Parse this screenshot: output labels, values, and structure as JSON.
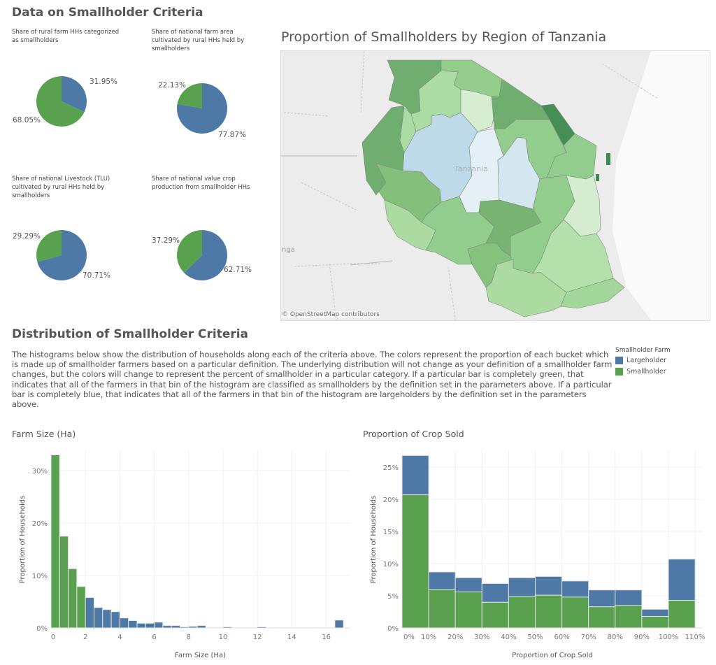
{
  "colors": {
    "largeholder": "#4e79a7",
    "smallholder": "#59a14f"
  },
  "criteria": {
    "title": "Data on Smallholder Criteria",
    "pies": [
      {
        "title": "Share of rural farm HHs categorized as smallholders",
        "largeholder": 31.95,
        "smallholder": 68.05,
        "largeholder_label": "31.95%",
        "smallholder_label": "68.05%"
      },
      {
        "title": "Share of national farm area cultivated by rural HHs held by smallholders",
        "largeholder": 77.87,
        "smallholder": 22.13,
        "largeholder_label": "77.87%",
        "smallholder_label": "22.13%"
      },
      {
        "title": "Share of national Livestock (TLU) cultivated by rural HHs held by smallholders",
        "largeholder": 70.71,
        "smallholder": 29.29,
        "largeholder_label": "70.71%",
        "smallholder_label": "29.29%"
      },
      {
        "title": "Share of national value crop production from smallholder HHs",
        "largeholder": 62.71,
        "smallholder": 37.29,
        "largeholder_label": "62.71%",
        "smallholder_label": "37.29%"
      }
    ]
  },
  "map": {
    "title": "Proportion of Smallholders by Region of Tanzania",
    "country_label": "Tanzania",
    "edge_label": "nga",
    "credit": "© OpenStreetMap contributors"
  },
  "distribution": {
    "title": "Distribution of Smallholder Criteria",
    "description": "The histograms below show the distribution of households along each of the criteria above. The colors represent the proportion of each bucket which is made up of smallholder farmers based on a particular definition. The underlying distribution will not change as your definition of a smallholder farm changes, but the colors will change to represent the percent of smallholder in a particular category. If a particular bar is completely green, that indicates that all of the farmers in that bin of the histogram are classified as smallholders by the definition set in the parameters above. If a particular bar is completely blue, that indicates that all of the farmers in that bin of the histogram are largeholders by the definition set in the parameters above."
  },
  "legend": {
    "title": "Smallholder Farm",
    "items": [
      {
        "label": "Largeholder",
        "key": "largeholder"
      },
      {
        "label": "Smallholder",
        "key": "smallholder"
      }
    ]
  },
  "chart_data": [
    {
      "type": "bar",
      "title": "Farm Size (Ha)",
      "xlabel": "Farm Size (Ha)",
      "ylabel": "Proportion of Households",
      "bin_width": 0.5,
      "xlim": [
        0,
        17
      ],
      "ylim": [
        0,
        33
      ],
      "grid": true,
      "xticks": [
        0,
        2,
        4,
        6,
        8,
        10,
        12,
        14,
        16
      ],
      "xtick_labels": [
        "0",
        "2",
        "4",
        "6",
        "8",
        "10",
        "12",
        "14",
        "16"
      ],
      "yticks": [
        0,
        10,
        20,
        30
      ],
      "ytick_labels": [
        "0%",
        "10%",
        "20%",
        "30%"
      ],
      "bins": [
        0,
        0.5,
        1,
        1.5,
        2,
        2.5,
        3,
        3.5,
        4,
        4.5,
        5,
        5.5,
        6,
        6.5,
        7,
        7.5,
        8,
        8.5,
        9,
        9.5,
        10,
        10.5,
        11,
        11.5,
        12,
        12.5,
        13,
        13.5,
        14,
        14.5,
        15,
        15.5,
        16,
        16.5
      ],
      "values": [
        33.0,
        17.5,
        11.3,
        7.9,
        5.8,
        3.9,
        3.5,
        3.1,
        1.9,
        1.4,
        0.9,
        0.9,
        1.1,
        0.45,
        0.45,
        0.2,
        0.3,
        0.45,
        0.1,
        0.1,
        0.2,
        0.05,
        0.05,
        0,
        0.2,
        0,
        0.05,
        0.05,
        0,
        0.05,
        0.05,
        0,
        0,
        1.5
      ],
      "category": [
        "smallholder",
        "smallholder",
        "smallholder",
        "smallholder",
        "largeholder",
        "largeholder",
        "largeholder",
        "largeholder",
        "largeholder",
        "largeholder",
        "largeholder",
        "largeholder",
        "largeholder",
        "largeholder",
        "largeholder",
        "largeholder",
        "largeholder",
        "largeholder",
        "largeholder",
        "largeholder",
        "largeholder",
        "largeholder",
        "largeholder",
        "largeholder",
        "largeholder",
        "largeholder",
        "largeholder",
        "largeholder",
        "largeholder",
        "largeholder",
        "largeholder",
        "largeholder",
        "largeholder",
        "largeholder"
      ]
    },
    {
      "type": "bar",
      "stacked": true,
      "title": "Proportion of Crop Sold",
      "xlabel": "Proportion of Crop Sold",
      "ylabel": "Proportion of Households",
      "bin_width": 10,
      "xlim": [
        0,
        110
      ],
      "ylim": [
        0,
        27
      ],
      "grid": true,
      "xticks": [
        0,
        10,
        20,
        30,
        40,
        50,
        60,
        70,
        80,
        90,
        100,
        110
      ],
      "xtick_labels": [
        "0%",
        "10%",
        "20%",
        "30%",
        "40%",
        "50%",
        "60%",
        "70%",
        "80%",
        "90%",
        "100%",
        "110%"
      ],
      "yticks": [
        0,
        5,
        10,
        15,
        20,
        25
      ],
      "ytick_labels": [
        "0%",
        "5%",
        "10%",
        "15%",
        "20%",
        "25%"
      ],
      "bins": [
        0,
        10,
        20,
        30,
        40,
        50,
        60,
        70,
        80,
        90,
        100
      ],
      "series": [
        {
          "name": "Smallholder",
          "values": [
            20.7,
            6.0,
            5.6,
            4.0,
            4.9,
            5.1,
            4.8,
            3.3,
            3.5,
            1.8,
            4.3
          ]
        },
        {
          "name": "Largeholder",
          "values": [
            6.1,
            2.7,
            2.2,
            2.9,
            2.9,
            2.9,
            2.5,
            2.6,
            2.4,
            1.1,
            6.4
          ]
        }
      ]
    }
  ]
}
